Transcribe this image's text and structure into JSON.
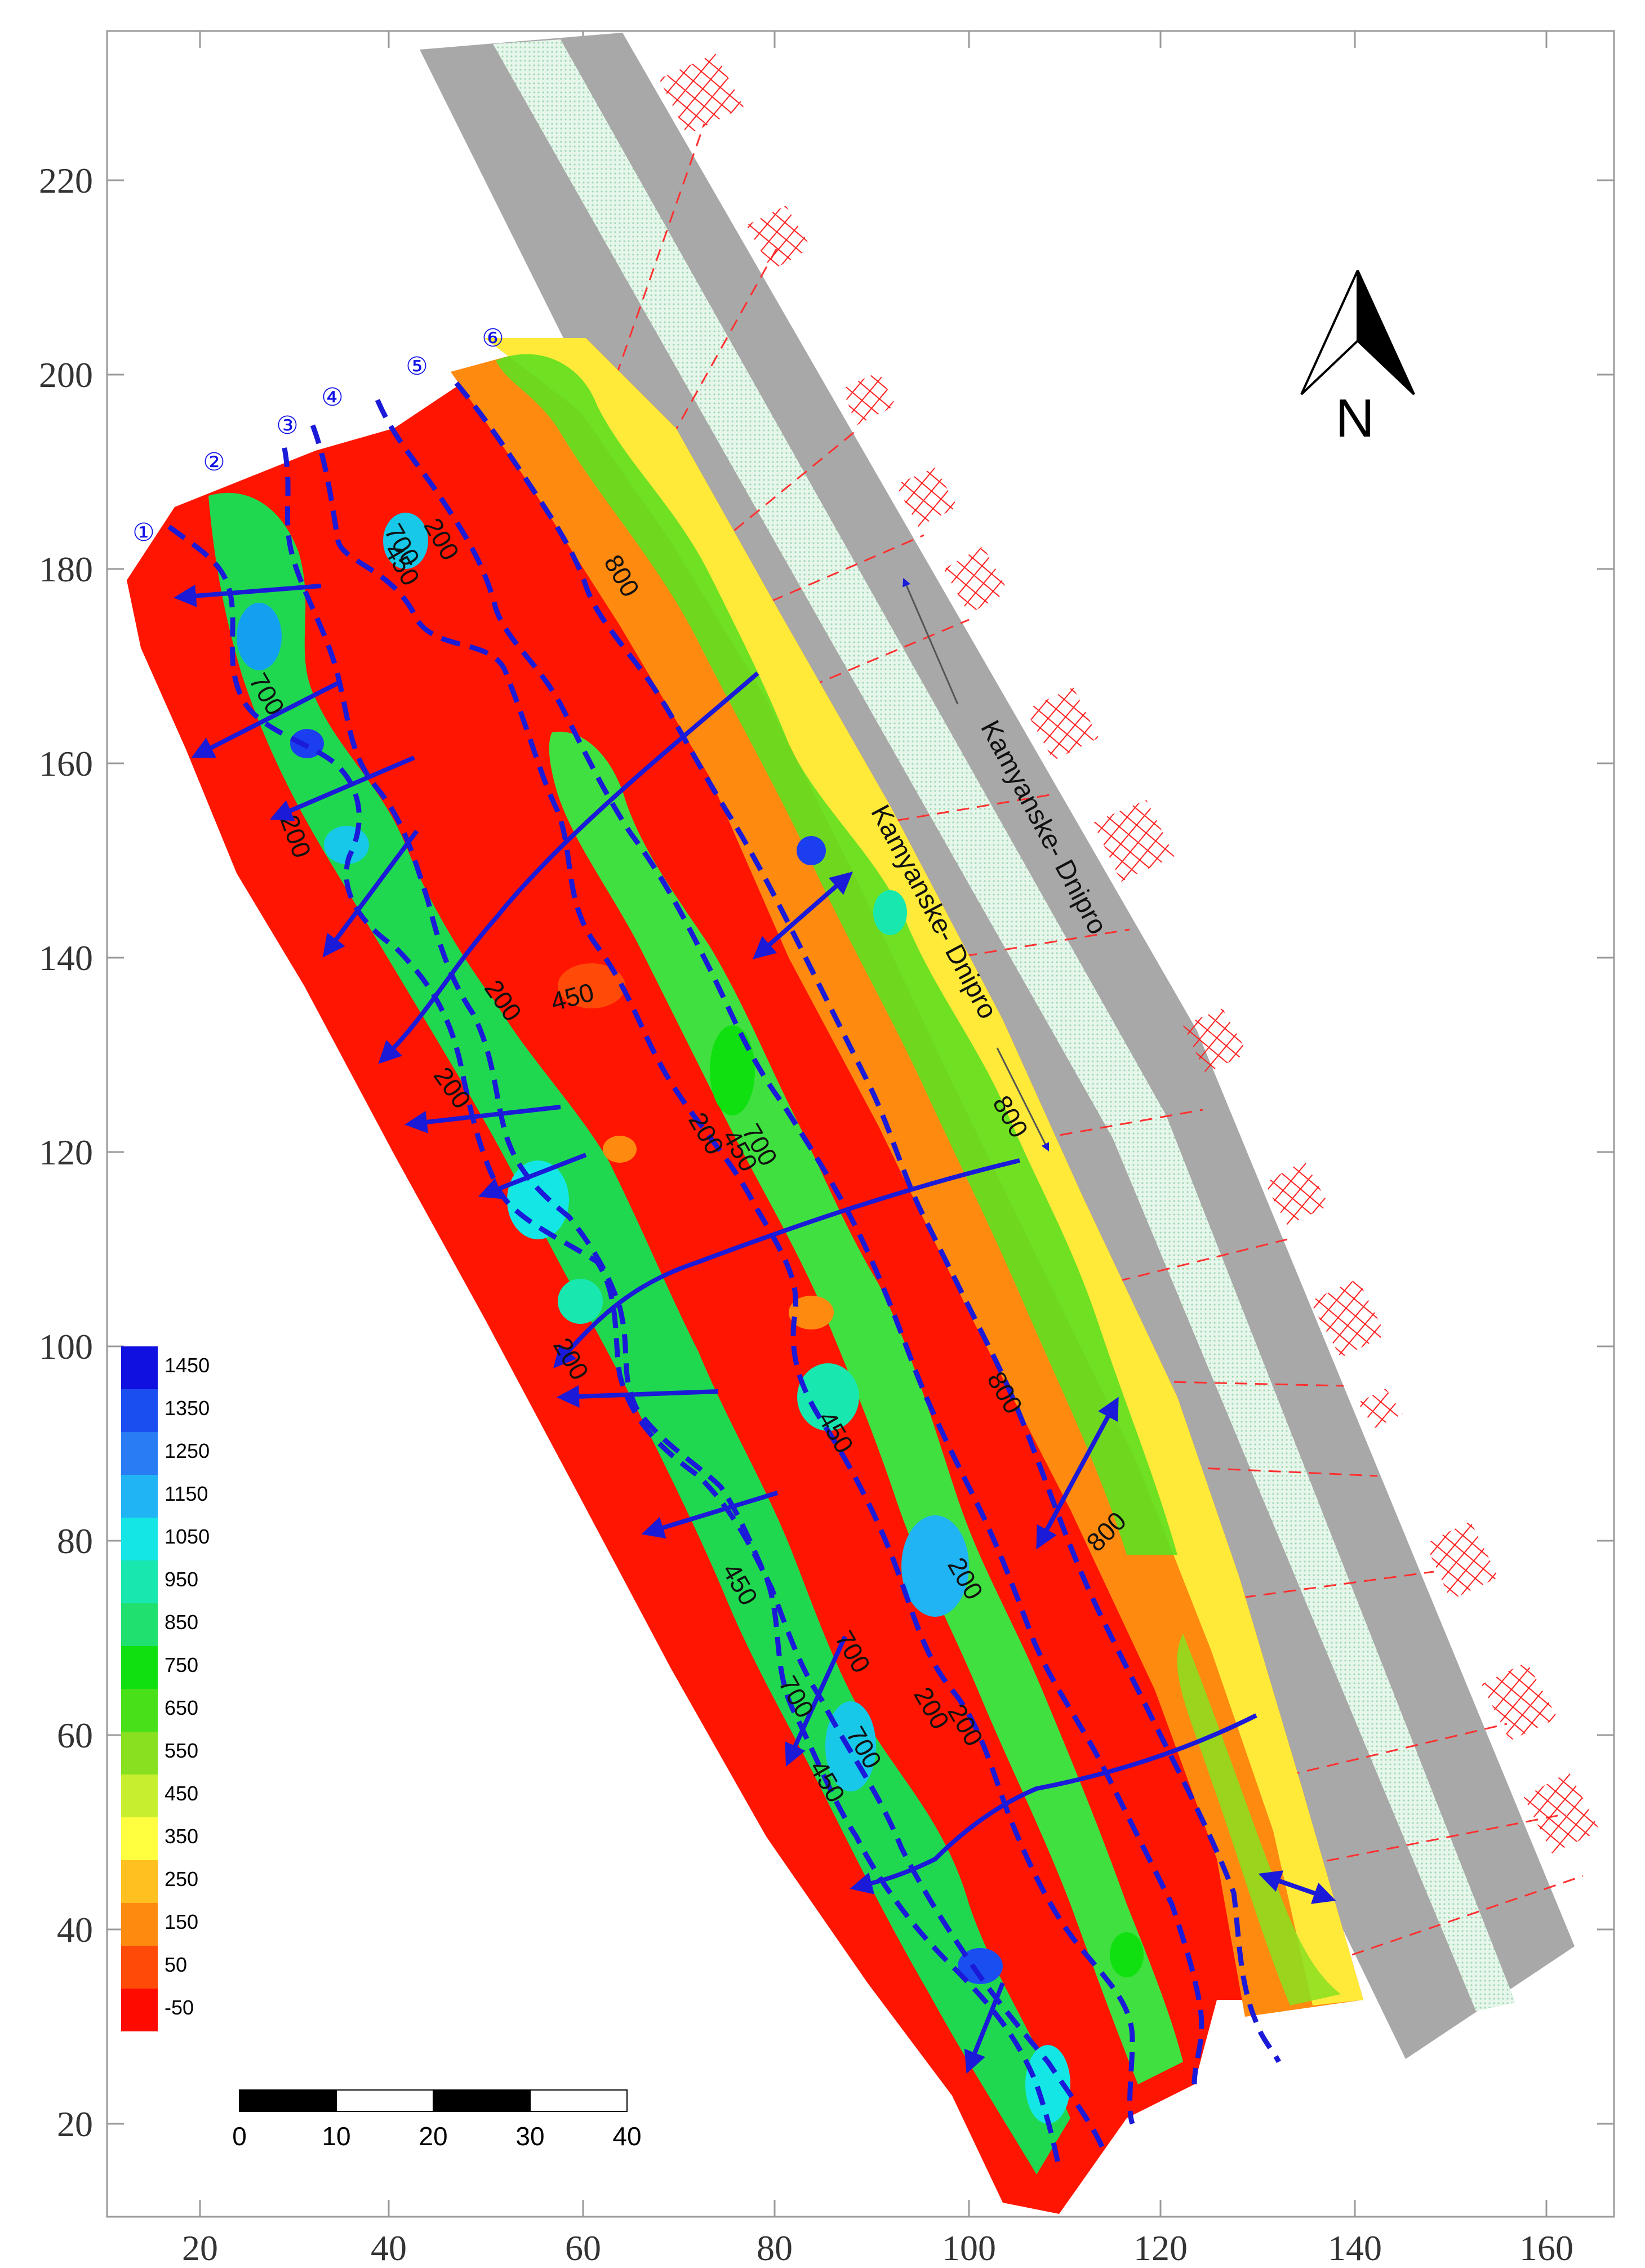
{
  "axes": {
    "x_ticks": [
      "20",
      "40",
      "60",
      "80",
      "100",
      "120",
      "140",
      "160"
    ],
    "y_ticks": [
      "220",
      "200",
      "180",
      "160",
      "140",
      "120",
      "100",
      "80",
      "60",
      "40",
      "20"
    ]
  },
  "profiles": [
    "①",
    "②",
    "③",
    "④",
    "⑤",
    "⑥"
  ],
  "contour_labels": [
    "700",
    "450",
    "200",
    "800",
    "700",
    "200",
    "200",
    "450",
    "200",
    "200",
    "700",
    "450",
    "800",
    "200",
    "450",
    "800",
    "800",
    "700",
    "450",
    "200",
    "700",
    "700",
    "450",
    "200",
    "200"
  ],
  "road_labels": [
    "Kamyanske- Dnipro",
    "Kamyanske- Dnipro"
  ],
  "north_label": "N",
  "legend": {
    "labels": [
      "1450",
      "1350",
      "1250",
      "1150",
      "1050",
      "950",
      "850",
      "750",
      "650",
      "550",
      "450",
      "350",
      "250",
      "150",
      "50",
      "-50"
    ],
    "colors": [
      "#1010e0",
      "#1a4ef0",
      "#2a7cf5",
      "#20b4f5",
      "#14e6e6",
      "#18e8b0",
      "#20e070",
      "#10e010",
      "#48e018",
      "#88e020",
      "#c8ee30",
      "#ffff40",
      "#ffc020",
      "#ff8a10",
      "#ff4a08",
      "#ff0a00"
    ]
  },
  "scale_bar": {
    "labels": [
      "0",
      "10",
      "20",
      "30",
      "40"
    ]
  },
  "colors": {
    "road": "#a8a8a8",
    "road_strip": "#d8f0e0",
    "profile_line": "#1a1ad8",
    "hatch": "#ff2020",
    "low": "#ff1500",
    "mid": "#ff8a10",
    "high": "#10e010"
  }
}
